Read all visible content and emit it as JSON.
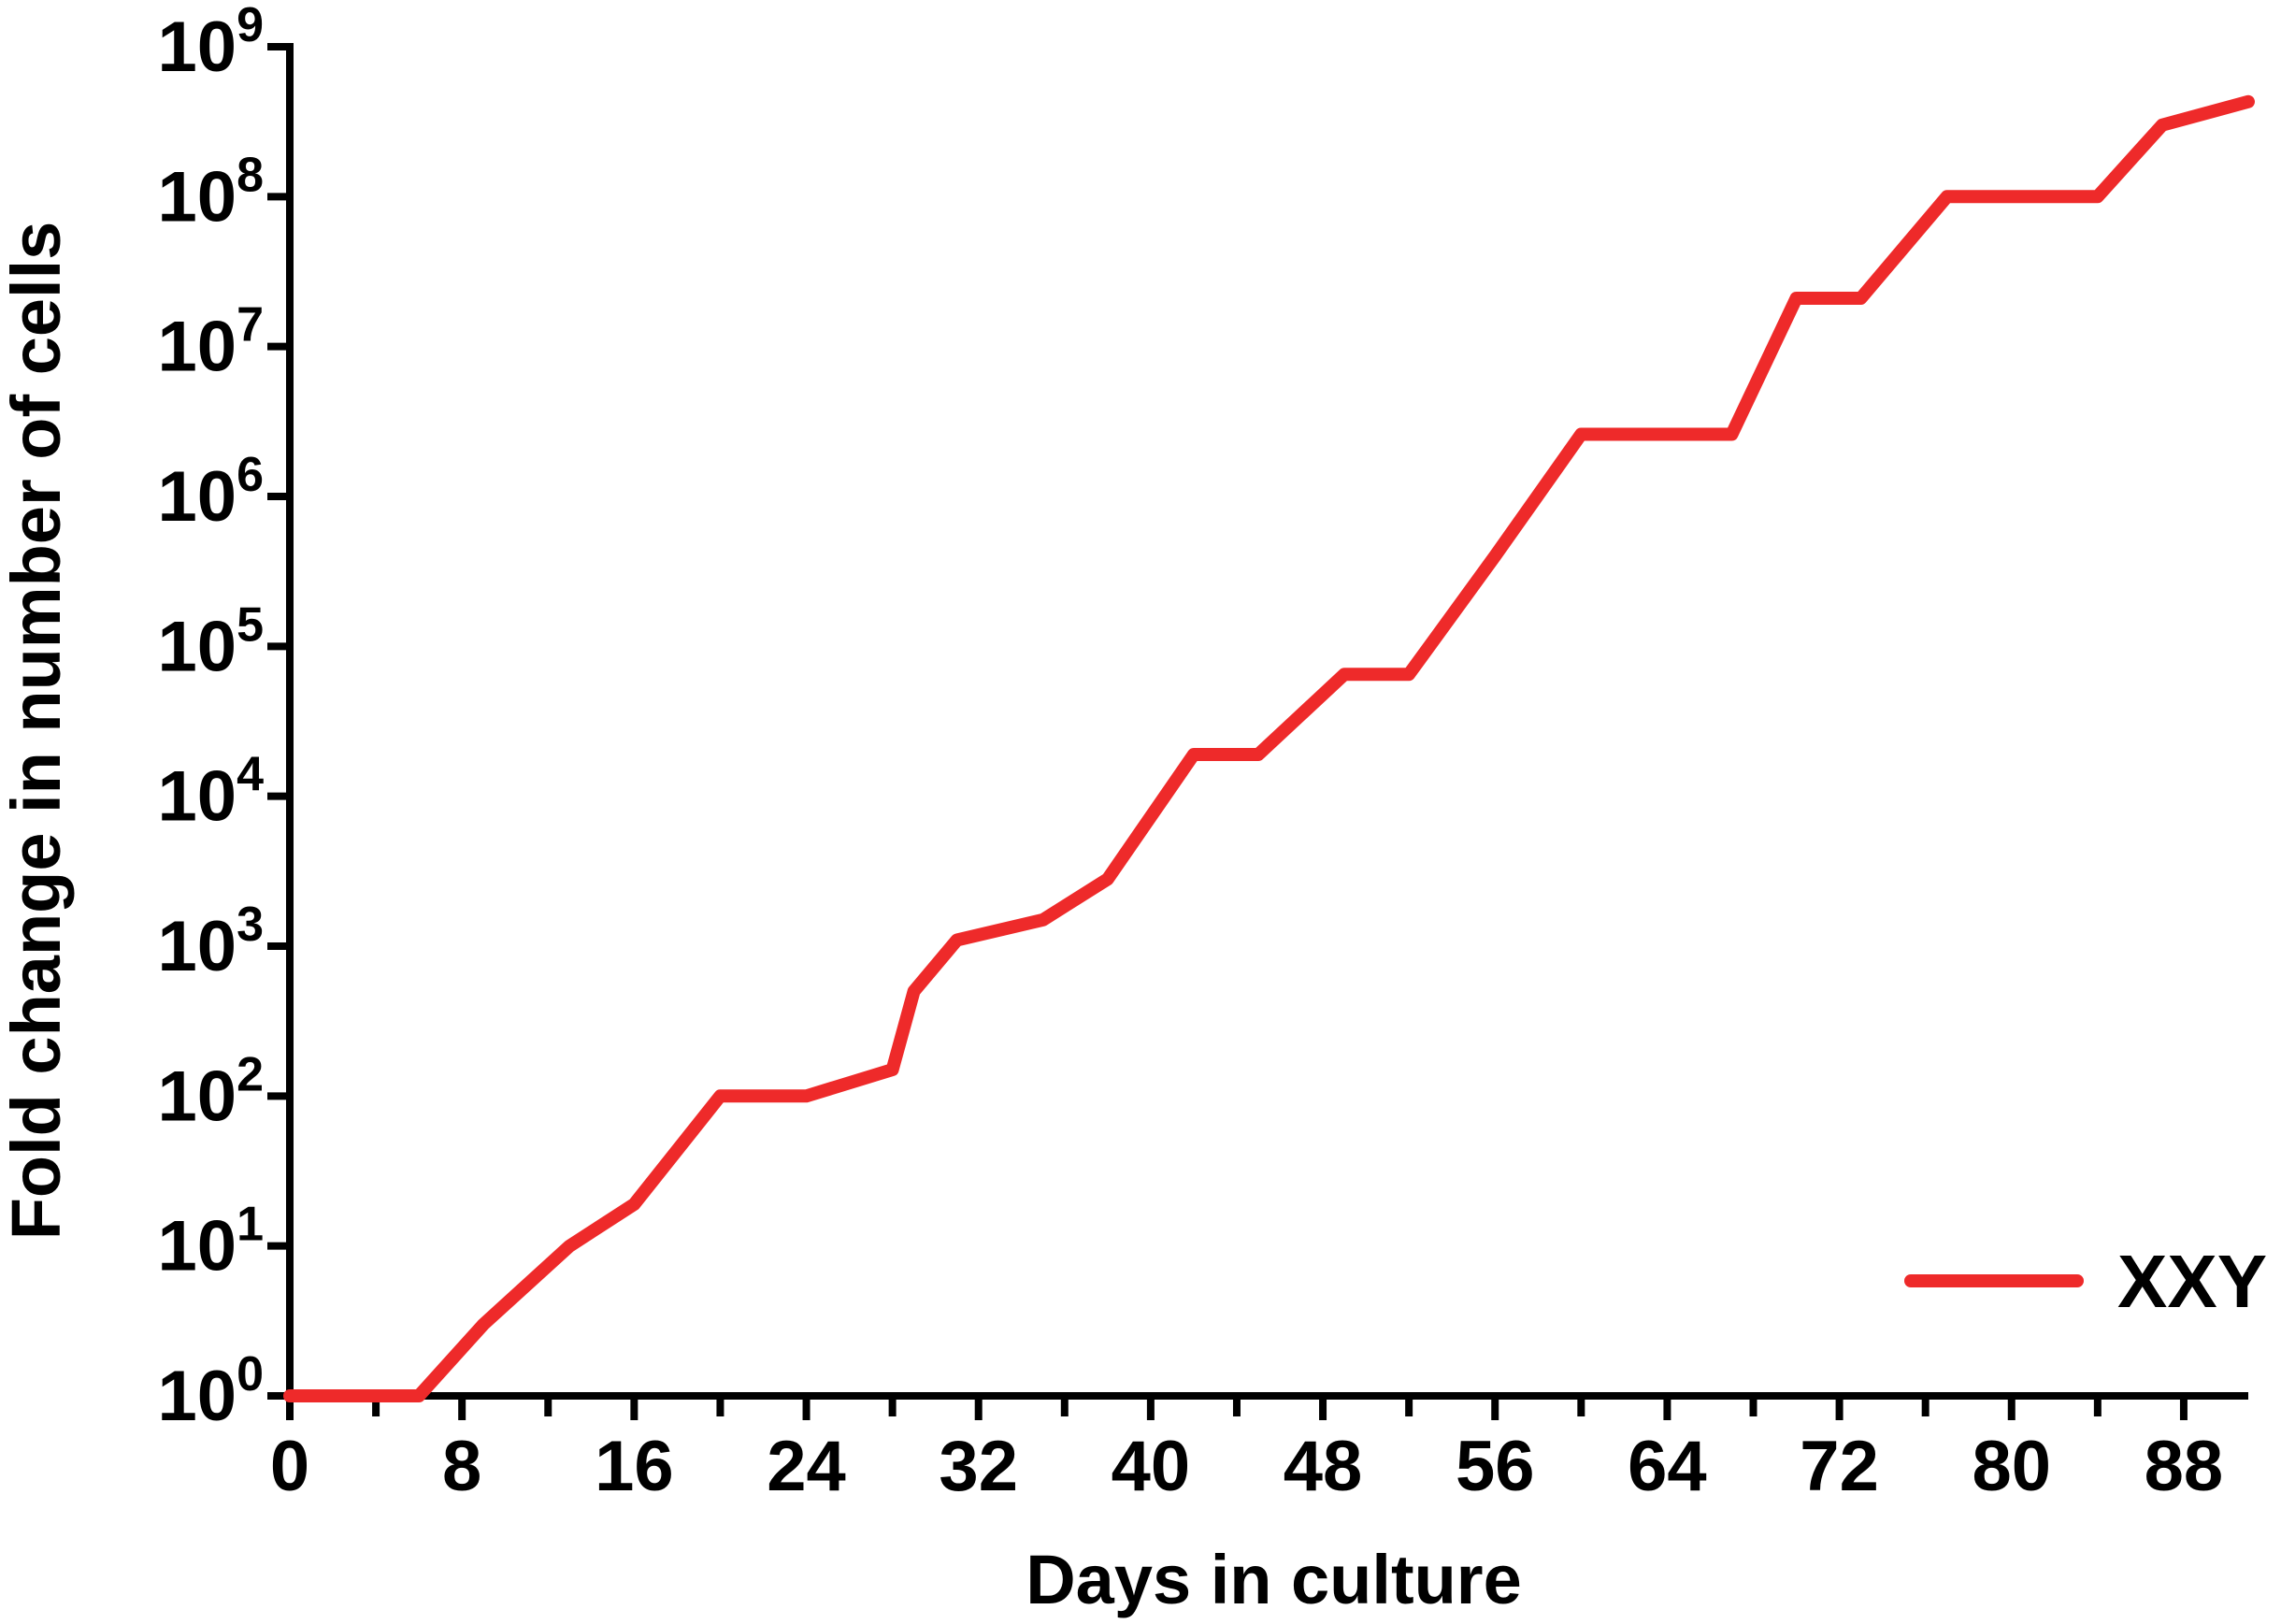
{
  "chart_data": {
    "type": "line",
    "xlabel": "Days in culture",
    "ylabel": "Fold change in number of cells",
    "xlim": [
      0,
      91
    ],
    "ylim": [
      1,
      1000000000
    ],
    "yscale": "log",
    "x_ticks": [
      0,
      8,
      16,
      24,
      32,
      40,
      48,
      56,
      64,
      72,
      80,
      88
    ],
    "x_minor_ticks": [
      4,
      12,
      20,
      28,
      36,
      44,
      52,
      60,
      68,
      76,
      84
    ],
    "y_ticks": [
      {
        "value": 1,
        "base": "10",
        "exp": "0"
      },
      {
        "value": 10,
        "base": "10",
        "exp": "1"
      },
      {
        "value": 100,
        "base": "10",
        "exp": "2"
      },
      {
        "value": 1000,
        "base": "10",
        "exp": "3"
      },
      {
        "value": 10000,
        "base": "10",
        "exp": "4"
      },
      {
        "value": 100000,
        "base": "10",
        "exp": "5"
      },
      {
        "value": 1000000,
        "base": "10",
        "exp": "6"
      },
      {
        "value": 10000000,
        "base": "10",
        "exp": "7"
      },
      {
        "value": 100000000,
        "base": "10",
        "exp": "8"
      },
      {
        "value": 1000000000,
        "base": "10",
        "exp": "9"
      }
    ],
    "legend_position": "bottom-right",
    "series": [
      {
        "name": "XXY",
        "color": "#ee2a2a",
        "points": [
          [
            0,
            1
          ],
          [
            6,
            1
          ],
          [
            9,
            3
          ],
          [
            13,
            10
          ],
          [
            16,
            19
          ],
          [
            20,
            100
          ],
          [
            24,
            100
          ],
          [
            28,
            150
          ],
          [
            29,
            500
          ],
          [
            31,
            1100
          ],
          [
            35,
            1500
          ],
          [
            38,
            2800
          ],
          [
            42,
            19000
          ],
          [
            45,
            19000
          ],
          [
            49,
            65000
          ],
          [
            52,
            65000
          ],
          [
            56,
            400000
          ],
          [
            60,
            2600000
          ],
          [
            67,
            2600000
          ],
          [
            70,
            21000000
          ],
          [
            73,
            21000000
          ],
          [
            77,
            100000000
          ],
          [
            84,
            100000000
          ],
          [
            87,
            300000000
          ],
          [
            91,
            430000000
          ]
        ]
      }
    ]
  }
}
